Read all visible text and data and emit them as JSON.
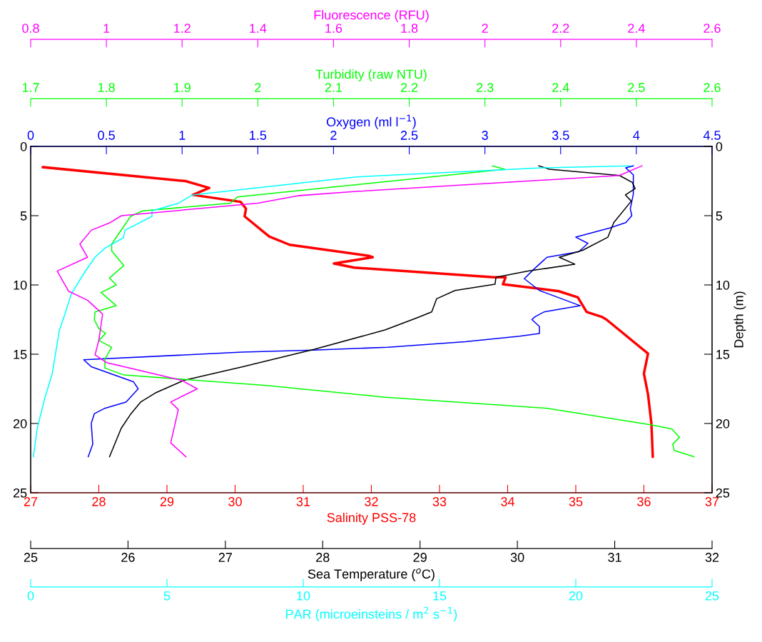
{
  "chart_data": [
    {
      "type": "line",
      "grid": false,
      "ylim": [
        25,
        0
      ],
      "yticks": [
        0,
        5,
        10,
        15,
        20,
        25
      ],
      "y2lim": [
        25,
        0
      ],
      "y2ticks": [
        0,
        5,
        10,
        15,
        20,
        25
      ],
      "y2label": "Depth (m)",
      "xlabel": "Salinity PSS-78",
      "xlim": [
        27,
        37
      ],
      "xticks": [
        27,
        28,
        29,
        30,
        31,
        32,
        33,
        34,
        35,
        36,
        37
      ],
      "x2label": "Oxygen (ml l$^{−1}$)",
      "x2lim": [
        0,
        4.5
      ],
      "x2ticks": [
        0,
        0.5,
        1,
        1.5,
        2,
        2.5,
        3,
        3.5,
        4,
        4.5
      ],
      "series": [
        {
          "axis": "x2",
          "color": "#0000ff",
          "x": [
            3.98,
            3.93,
            3.98,
            3.98,
            3.96,
            3.97,
            3.93,
            3.82,
            3.6,
            3.68,
            3.62,
            3.41,
            3.32,
            3.26,
            3.36,
            3.63,
            3.39,
            3.33,
            3.31,
            3.36,
            3.36,
            3.23,
            2.87,
            2.36,
            1.87,
            1.4,
            0.35,
            0.4,
            0.68,
            0.71,
            0.63,
            0.49,
            0.42,
            0.4,
            0.41,
            0.38
          ],
          "values": [
            1.4,
            1.55,
            2.05,
            3.45,
            4.5,
            5.0,
            5.5,
            5.9,
            6.55,
            7.0,
            7.6,
            8.0,
            8.9,
            9.55,
            10.4,
            11.5,
            11.95,
            12.3,
            12.5,
            13.0,
            13.5,
            13.7,
            14.1,
            14.5,
            14.7,
            14.85,
            15.4,
            15.9,
            17.0,
            17.5,
            18.45,
            18.9,
            19.3,
            20.0,
            21.5,
            22.4
          ]
        },
        {
          "color": "#ff0000",
          "x": [
            27.18,
            29.27,
            29.62,
            29.38,
            30.08,
            30.16,
            30.14,
            30.5,
            30.8,
            31.96,
            32.02,
            31.45,
            31.75,
            33.8,
            33.97,
            33.93,
            34.75,
            35.03,
            35.16,
            35.38,
            35.45,
            36.06,
            36.0,
            36.06,
            36.11,
            36.13
          ],
          "values": [
            1.5,
            2.5,
            3.0,
            3.5,
            4.0,
            4.5,
            5.05,
            6.5,
            7.1,
            7.9,
            8.0,
            8.45,
            8.75,
            9.45,
            9.45,
            9.95,
            10.45,
            10.9,
            11.95,
            12.3,
            12.5,
            14.95,
            16.4,
            17.9,
            20.0,
            22.4
          ]
        }
      ]
    },
    {
      "type": "line",
      "grid": false,
      "tick_labels": "x",
      "ylim": [
        25,
        0
      ],
      "xlabel": "Sea Temperature ($^{o}$C)",
      "xlim": [
        25,
        32
      ],
      "xticks": [
        25,
        26,
        27,
        28,
        29,
        30,
        31,
        32
      ],
      "x2label": "Turbidity (raw NTU)",
      "x2lim": [
        1.7,
        2.6
      ],
      "x2ticks": [
        1.7,
        1.8,
        1.9,
        2,
        2.1,
        2.2,
        2.3,
        2.4,
        2.5,
        2.6
      ],
      "series": [
        {
          "axis": "x2",
          "color": "#00ff00",
          "x": [
            2.31,
            2.326,
            2.168,
            1.973,
            1.964,
            1.848,
            1.832,
            1.807,
            1.807,
            1.823,
            1.804,
            1.813,
            1.793,
            1.813,
            1.785,
            1.784,
            1.79,
            1.799,
            1.79,
            1.807,
            1.798,
            1.798,
            1.823,
            2.011,
            2.168,
            2.382,
            2.52,
            2.547,
            2.557,
            2.548,
            2.55,
            2.576
          ],
          "values": [
            1.4,
            1.65,
            2.55,
            3.65,
            4.1,
            4.65,
            5.05,
            7.05,
            7.55,
            8.6,
            9.5,
            10.0,
            10.55,
            11.5,
            11.95,
            12.5,
            13.15,
            13.5,
            14.0,
            14.5,
            15.35,
            16.0,
            16.5,
            17.25,
            18.1,
            18.9,
            20.1,
            20.4,
            21.0,
            21.5,
            21.95,
            22.4
          ]
        },
        {
          "color": "#000000",
          "x": [
            30.22,
            30.33,
            31.05,
            31.18,
            31.21,
            31.11,
            31.17,
            30.99,
            30.93,
            30.67,
            30.43,
            30.59,
            30.11,
            29.78,
            29.77,
            29.36,
            29.17,
            29.12,
            28.96,
            28.64,
            27.91,
            27.18,
            26.57,
            26.28,
            26.13,
            26.03,
            25.93,
            25.81
          ],
          "values": [
            1.4,
            1.65,
            2.1,
            2.6,
            3.05,
            3.5,
            3.95,
            5.5,
            6.55,
            7.5,
            8.0,
            8.5,
            9.0,
            9.45,
            9.95,
            10.4,
            11.0,
            11.95,
            12.4,
            13.25,
            14.65,
            15.9,
            16.9,
            17.8,
            18.45,
            19.3,
            20.35,
            22.4
          ]
        }
      ]
    },
    {
      "type": "line",
      "grid": false,
      "tick_labels": "x",
      "ylim": [
        25,
        0
      ],
      "xlabel": "PAR (microeinsteins / m$^{2}$ s$^{−1}$)",
      "xlim": [
        0,
        25
      ],
      "xticks": [
        0,
        5,
        10,
        15,
        20,
        25
      ],
      "x2label": "Fluorescence (RFU)",
      "x2lim": [
        0.8,
        2.6
      ],
      "x2ticks": [
        0.8,
        1,
        1.2,
        1.4,
        1.6,
        1.8,
        2,
        2.2,
        2.4,
        2.6
      ],
      "series": [
        {
          "color": "#00ffff",
          "x": [
            21.99,
            18.77,
            11.96,
            5.94,
            5.42,
            4.45,
            4.45,
            3.46,
            3.4,
            2.72,
            2.36,
            1.94,
            1.49,
            1.23,
            1.05,
            0.79,
            0.52,
            0.24,
            0.1
          ],
          "values": [
            1.4,
            1.55,
            2.2,
            3.5,
            4.1,
            4.65,
            5.05,
            6.05,
            6.6,
            7.35,
            8.0,
            9.2,
            10.65,
            12.25,
            13.3,
            16.4,
            18.15,
            20.35,
            22.4
          ]
        },
        {
          "axis": "x2",
          "color": "#ff00ff",
          "x": [
            2.415,
            2.355,
            1.66,
            1.51,
            1.4,
            1.04,
            1.01,
            0.96,
            0.93,
            0.95,
            0.87,
            0.9,
            0.95,
            0.98,
            0.99,
            0.98,
            0.97,
            1.0,
            1.2,
            1.24,
            1.17,
            1.19,
            1.17,
            1.21
          ],
          "values": [
            1.4,
            2.1,
            3.25,
            3.55,
            4.1,
            5.0,
            5.5,
            6.05,
            7.05,
            8.0,
            9.0,
            10.45,
            11.1,
            11.85,
            12.1,
            14.0,
            15.05,
            15.6,
            16.9,
            17.5,
            18.45,
            19.0,
            21.4,
            22.4
          ]
        }
      ]
    }
  ]
}
